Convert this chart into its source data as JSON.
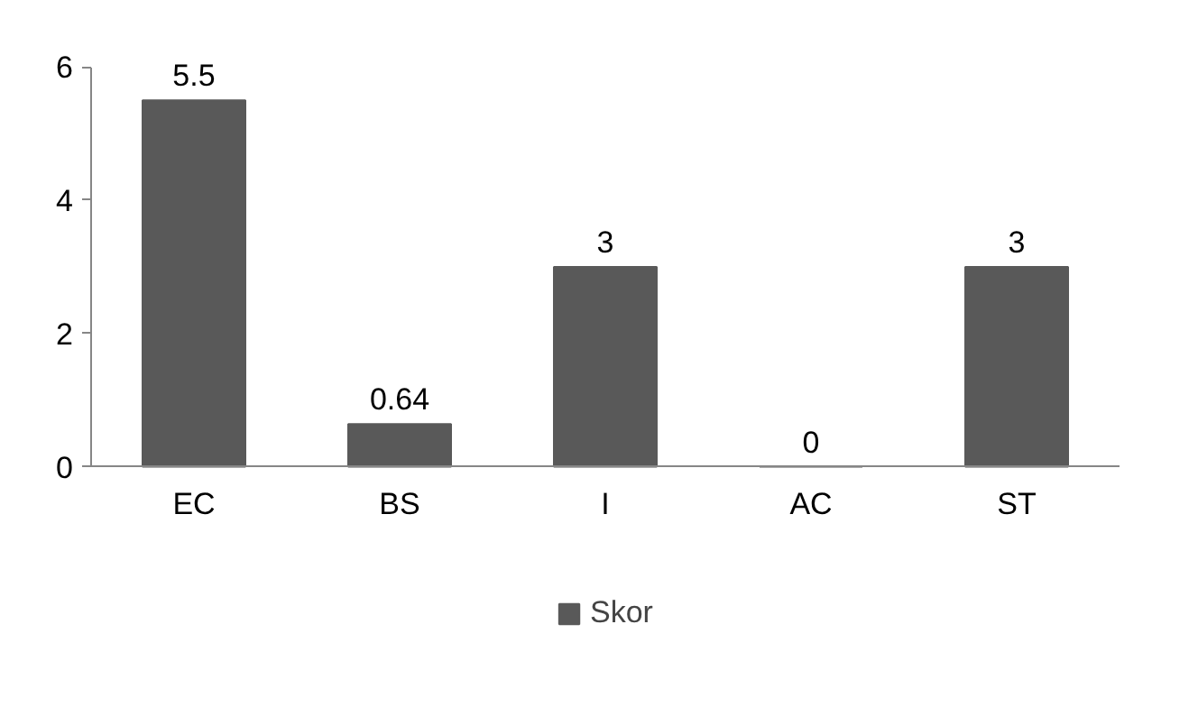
{
  "chart_data": {
    "type": "bar",
    "categories": [
      "EC",
      "BS",
      "I",
      "AC",
      "ST"
    ],
    "series": [
      {
        "name": "Skor",
        "color": "#595959",
        "values": [
          5.5,
          0.64,
          3,
          0,
          3
        ]
      }
    ],
    "ylim": [
      0,
      6
    ],
    "yticks": [
      0,
      2,
      4,
      6
    ],
    "data_labels": true,
    "grid": false,
    "legend": "bottom"
  }
}
